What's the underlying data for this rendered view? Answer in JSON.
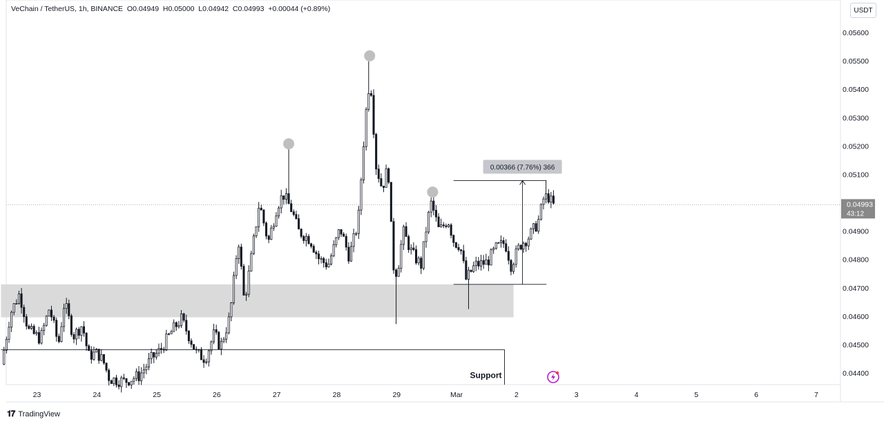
{
  "header": {
    "symbol": "VeChain / TetherUS, 1h, BINANCE",
    "open": "O0.04949",
    "high": "H0.05000",
    "low": "L0.04942",
    "close": "C0.04993",
    "change": "+0.00044 (+0.89%)"
  },
  "currency": "USDT",
  "brand": "TradingView",
  "colors": {
    "candle": "#131722",
    "zone": "#d3d3d3",
    "marker": "#b8b8b8",
    "price_badge": "#888888",
    "lightning": "#b01cd0"
  },
  "chart_data": {
    "type": "candlestick",
    "title": "VeChain / TetherUS, 1h, BINANCE",
    "x_tick_labels": [
      "23",
      "24",
      "25",
      "26",
      "27",
      "28",
      "29",
      "Mar",
      "2",
      "3",
      "4",
      "5",
      "6",
      "7"
    ],
    "y_tick_labels": [
      "0.05600",
      "0.05500",
      "0.05400",
      "0.05300",
      "0.05200",
      "0.05100",
      "0.04900",
      "0.04800",
      "0.04700",
      "0.04600",
      "0.04500",
      "0.04400"
    ],
    "ylim": [
      0.0435,
      0.0568
    ],
    "last_price": "0.04993",
    "last_price_value": 0.04993,
    "countdown": "43:12",
    "swing_high_markers": [
      {
        "day": 27.2,
        "price": 0.05188
      },
      {
        "day": 28.55,
        "price": 0.05498
      },
      {
        "day": 29.6,
        "price": 0.05018
      }
    ],
    "zones": [
      {
        "label": "",
        "day_start": 22.4,
        "day_end": 30.95,
        "price_low": 0.04596,
        "price_high": 0.04712
      }
    ],
    "annotations": [
      {
        "type": "support",
        "label": "Support",
        "price": 0.04482,
        "day_start": 22.4,
        "day_end": 30.8
      },
      {
        "type": "price_range",
        "label": "0.00366 (7.76%) 366",
        "day_start": 29.95,
        "day_end": 31.5,
        "price_low": 0.04712,
        "price_high": 0.05078
      }
    ],
    "key_points": [
      [
        22.45,
        0.0443
      ],
      [
        22.6,
        0.0461
      ],
      [
        22.75,
        0.0468
      ],
      [
        22.9,
        0.0455
      ],
      [
        23.1,
        0.0452
      ],
      [
        23.25,
        0.0463
      ],
      [
        23.4,
        0.045
      ],
      [
        23.5,
        0.0465
      ],
      [
        23.65,
        0.0453
      ],
      [
        23.8,
        0.0457
      ],
      [
        23.9,
        0.0446
      ],
      [
        24.05,
        0.0447
      ],
      [
        24.15,
        0.0444
      ],
      [
        24.25,
        0.0438
      ],
      [
        24.5,
        0.0437
      ],
      [
        24.75,
        0.0439
      ],
      [
        24.95,
        0.0445
      ],
      [
        25.1,
        0.0448
      ],
      [
        25.3,
        0.0455
      ],
      [
        25.45,
        0.0459
      ],
      [
        25.6,
        0.0452
      ],
      [
        25.7,
        0.0447
      ],
      [
        25.85,
        0.0445
      ],
      [
        26.0,
        0.0454
      ],
      [
        26.1,
        0.0449
      ],
      [
        26.25,
        0.0459
      ],
      [
        26.3,
        0.0467
      ],
      [
        26.4,
        0.0488
      ],
      [
        26.5,
        0.0465
      ],
      [
        26.6,
        0.0478
      ],
      [
        26.75,
        0.05
      ],
      [
        26.9,
        0.0486
      ],
      [
        27.05,
        0.0499
      ],
      [
        27.15,
        0.0503
      ],
      [
        27.3,
        0.0497
      ],
      [
        27.4,
        0.049
      ],
      [
        27.6,
        0.0487
      ],
      [
        27.75,
        0.048
      ],
      [
        27.9,
        0.0478
      ],
      [
        28.1,
        0.0491
      ],
      [
        28.25,
        0.0481
      ],
      [
        28.4,
        0.0493
      ],
      [
        28.52,
        0.053
      ],
      [
        28.6,
        0.0545
      ],
      [
        28.7,
        0.0513
      ],
      [
        28.8,
        0.0505
      ],
      [
        28.9,
        0.0513
      ],
      [
        28.98,
        0.0478
      ],
      [
        29.05,
        0.0475
      ],
      [
        29.15,
        0.049
      ],
      [
        29.3,
        0.0482
      ],
      [
        29.45,
        0.0478
      ],
      [
        29.55,
        0.0493
      ],
      [
        29.62,
        0.05
      ],
      [
        29.75,
        0.049
      ],
      [
        29.9,
        0.0494
      ],
      [
        30.0,
        0.0486
      ],
      [
        30.1,
        0.0485
      ],
      [
        30.2,
        0.0473
      ],
      [
        30.35,
        0.0478
      ],
      [
        30.55,
        0.0479
      ],
      [
        30.7,
        0.0484
      ],
      [
        30.85,
        0.0486
      ],
      [
        30.95,
        0.0478
      ],
      [
        31.1,
        0.0485
      ],
      [
        31.25,
        0.0488
      ],
      [
        31.4,
        0.0493
      ],
      [
        31.5,
        0.0502
      ],
      [
        31.58,
        0.0502
      ],
      [
        31.65,
        0.0499
      ]
    ]
  }
}
